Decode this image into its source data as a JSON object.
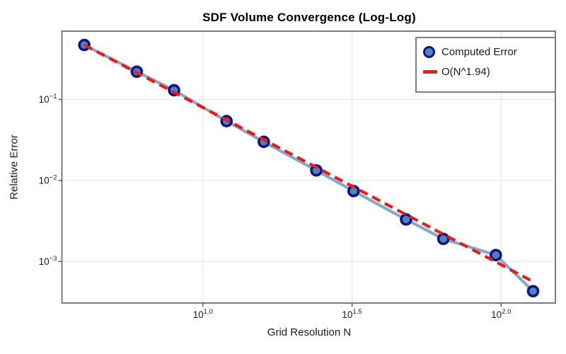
{
  "chart_data": {
    "type": "line",
    "title": "SDF Volume Convergence (Log-Log)",
    "xlabel": "Grid Resolution N",
    "ylabel": "Relative Error",
    "x_scale": "log",
    "y_scale": "log",
    "grid": true,
    "legend_position": "upper right",
    "x": [
      4,
      6,
      8,
      12,
      16,
      24,
      32,
      48,
      64,
      96,
      128
    ],
    "series": [
      {
        "name": "Computed Error",
        "style": "solid-line-with-circle-markers",
        "values": [
          0.47,
          0.22,
          0.13,
          0.054,
          0.03,
          0.0133,
          0.0074,
          0.0033,
          0.0019,
          0.0012,
          0.00043
        ]
      },
      {
        "name": "O(N^1.94)",
        "style": "dashed-line",
        "fit_exponent": -1.94,
        "values": [
          0.47,
          0.214,
          0.1225,
          0.0558,
          0.0319,
          0.01453,
          0.00832,
          0.00379,
          0.00217,
          0.000987,
          0.000565
        ]
      }
    ],
    "x_ticks": [
      {
        "value": 10,
        "base": "10",
        "exp": "1.0"
      },
      {
        "value": 31.62,
        "base": "10",
        "exp": "1.5"
      },
      {
        "value": 100,
        "base": "10",
        "exp": "2.0"
      }
    ],
    "y_ticks": [
      {
        "value": 0.1,
        "base": "10",
        "exp": "−1"
      },
      {
        "value": 0.01,
        "base": "10",
        "exp": "−2"
      },
      {
        "value": 0.001,
        "base": "10",
        "exp": "−3"
      }
    ],
    "xlim_log10": [
      0.527,
      2.182
    ],
    "ylim_log10": [
      -0.157,
      -3.513
    ],
    "colors": {
      "data_line": "#84a9ca",
      "marker_fill": "#4e84b8",
      "marker_edge": "#10128a",
      "fit_line": "#ec1b15",
      "grid": "#e9e9e9",
      "spine": "#6f6f6f",
      "tick": "#4a4a4a",
      "text": "#1a1a1a",
      "legend_border": "#7e7e7e"
    }
  }
}
